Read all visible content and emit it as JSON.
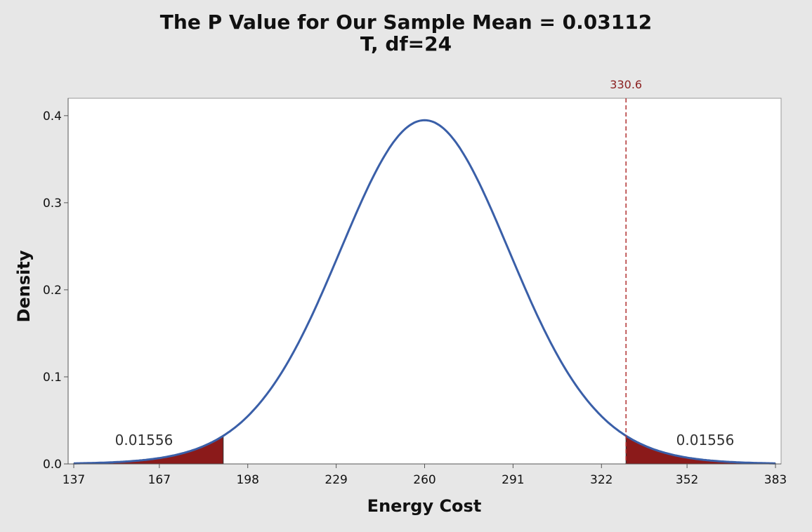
{
  "chart_data": {
    "type": "area",
    "title": "The P Value for Our Sample Mean = 0.03112",
    "subtitle": "T, df=24",
    "xlabel": "Energy Cost",
    "ylabel": "Density",
    "distribution": "T",
    "df": 24,
    "mean": 260,
    "scale": 30.6,
    "xlim": [
      137,
      383
    ],
    "ylim": [
      0,
      0.42
    ],
    "x_ticks": [
      {
        "value": 137,
        "label": "137"
      },
      {
        "value": 167,
        "label": "167"
      },
      {
        "value": 198,
        "label": "198"
      },
      {
        "value": 229,
        "label": "229"
      },
      {
        "value": 260,
        "label": "260"
      },
      {
        "value": 291,
        "label": "291"
      },
      {
        "value": 322,
        "label": "322"
      },
      {
        "value": 352,
        "label": "352"
      },
      {
        "value": 383,
        "label": "383"
      }
    ],
    "y_ticks": [
      {
        "value": 0.0,
        "label": "0.0"
      },
      {
        "value": 0.1,
        "label": "0.1"
      },
      {
        "value": 0.2,
        "label": "0.2"
      },
      {
        "value": 0.3,
        "label": "0.3"
      },
      {
        "value": 0.4,
        "label": "0.4"
      }
    ],
    "shaded_regions": [
      {
        "name": "left-tail",
        "from": 137,
        "to": 189.4,
        "area_label": "0.01556"
      },
      {
        "name": "right-tail",
        "from": 330.6,
        "to": 383,
        "area_label": "0.01556"
      }
    ],
    "reference_line": {
      "value": 330.6,
      "label": "330.6"
    },
    "colors": {
      "curve": "#3a5fa8",
      "shade": "#8b1a1a",
      "reference": "#b03030",
      "background": "#e7e7e7",
      "plot_background": "#ffffff"
    }
  }
}
